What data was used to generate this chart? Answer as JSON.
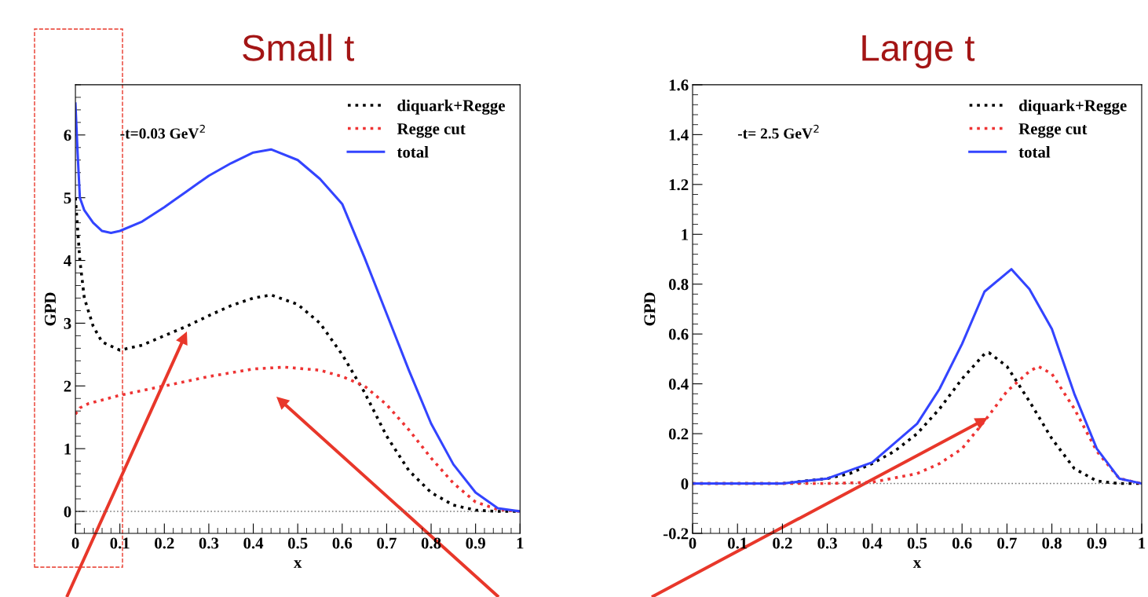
{
  "chart_data": [
    {
      "type": "line",
      "title": "Small t",
      "xlabel": "x",
      "ylabel": "GPD",
      "annotations": [
        "-t=0.03 GeV$^{2}$"
      ],
      "legend": "top right",
      "xlim": [
        0,
        1
      ],
      "ylim": [
        -0.35,
        6.8
      ],
      "xticks": [
        0,
        0.1,
        0.2,
        0.3,
        0.4,
        0.5,
        0.6,
        0.7,
        0.8,
        0.9,
        1
      ],
      "yticks": [
        0,
        1,
        2,
        3,
        4,
        5,
        6
      ],
      "ref_lines": [
        {
          "axis": "y",
          "value": 0,
          "color": "#777777",
          "line_style": "dotted"
        }
      ],
      "series": [
        {
          "name": "diquark+Regge",
          "color": "#000000",
          "line_style": "dotted",
          "x": [
            0,
            0.005,
            0.01,
            0.02,
            0.04,
            0.06,
            0.1,
            0.15,
            0.2,
            0.25,
            0.3,
            0.35,
            0.4,
            0.44,
            0.5,
            0.55,
            0.6,
            0.65,
            0.7,
            0.75,
            0.8,
            0.85,
            0.9,
            0.95,
            1
          ],
          "values": [
            5.0,
            4.5,
            4.0,
            3.4,
            2.95,
            2.7,
            2.57,
            2.65,
            2.8,
            2.95,
            3.12,
            3.28,
            3.4,
            3.45,
            3.3,
            3.0,
            2.5,
            1.9,
            1.2,
            0.65,
            0.3,
            0.1,
            0.02,
            0,
            0
          ]
        },
        {
          "name": "Regge cut",
          "color": "#ee3333",
          "line_style": "dotted",
          "x": [
            0,
            0.01,
            0.03,
            0.1,
            0.2,
            0.3,
            0.4,
            0.47,
            0.55,
            0.6,
            0.65,
            0.7,
            0.75,
            0.8,
            0.85,
            0.9,
            0.95,
            1
          ],
          "values": [
            1.55,
            1.65,
            1.72,
            1.85,
            2.0,
            2.15,
            2.27,
            2.3,
            2.25,
            2.15,
            2.0,
            1.7,
            1.3,
            0.85,
            0.45,
            0.15,
            0.03,
            0
          ]
        },
        {
          "name": "total",
          "color": "#3344ff",
          "line_style": "solid",
          "x": [
            0,
            0.005,
            0.01,
            0.02,
            0.04,
            0.06,
            0.08,
            0.1,
            0.15,
            0.2,
            0.25,
            0.3,
            0.35,
            0.4,
            0.44,
            0.5,
            0.55,
            0.6,
            0.65,
            0.7,
            0.75,
            0.8,
            0.85,
            0.9,
            0.95,
            1
          ],
          "values": [
            6.5,
            5.7,
            5.0,
            4.8,
            4.6,
            4.47,
            4.44,
            4.47,
            4.62,
            4.85,
            5.1,
            5.35,
            5.55,
            5.72,
            5.77,
            5.6,
            5.3,
            4.9,
            4.05,
            3.15,
            2.25,
            1.4,
            0.75,
            0.3,
            0.05,
            0
          ]
        }
      ]
    },
    {
      "type": "line",
      "title": "Large t",
      "xlabel": "x",
      "ylabel": "GPD",
      "annotations": [
        "-t= 2.5 GeV$^{2}$"
      ],
      "legend": "top right",
      "xlim": [
        0,
        1
      ],
      "ylim": [
        -0.2,
        1.6
      ],
      "xticks": [
        0,
        0.1,
        0.2,
        0.3,
        0.4,
        0.5,
        0.6,
        0.7,
        0.8,
        0.9,
        1
      ],
      "yticks": [
        -0.2,
        0,
        0.2,
        0.4,
        0.6,
        0.8,
        1,
        1.2,
        1.4,
        1.6
      ],
      "ref_lines": [
        {
          "axis": "y",
          "value": 0,
          "color": "#777777",
          "line_style": "dotted"
        }
      ],
      "series": [
        {
          "name": "diquark+Regge",
          "color": "#000000",
          "line_style": "dotted",
          "x": [
            0,
            0.1,
            0.2,
            0.3,
            0.35,
            0.4,
            0.45,
            0.5,
            0.55,
            0.6,
            0.65,
            0.66,
            0.7,
            0.75,
            0.8,
            0.85,
            0.9,
            0.95,
            1
          ],
          "values": [
            0,
            0,
            0,
            0.02,
            0.04,
            0.08,
            0.13,
            0.2,
            0.3,
            0.42,
            0.52,
            0.525,
            0.47,
            0.33,
            0.18,
            0.06,
            0.01,
            0,
            0
          ]
        },
        {
          "name": "Regge cut",
          "color": "#ee3333",
          "line_style": "dotted",
          "x": [
            0,
            0.1,
            0.2,
            0.3,
            0.4,
            0.5,
            0.55,
            0.6,
            0.65,
            0.7,
            0.75,
            0.77,
            0.8,
            0.85,
            0.9,
            0.95,
            1
          ],
          "values": [
            0,
            0,
            0,
            0,
            0.005,
            0.04,
            0.08,
            0.14,
            0.25,
            0.37,
            0.45,
            0.47,
            0.44,
            0.3,
            0.13,
            0.02,
            0
          ]
        },
        {
          "name": "total",
          "color": "#3344ff",
          "line_style": "solid",
          "x": [
            0,
            0.1,
            0.2,
            0.3,
            0.4,
            0.5,
            0.55,
            0.6,
            0.65,
            0.71,
            0.75,
            0.8,
            0.85,
            0.9,
            0.95,
            1
          ],
          "values": [
            0,
            0,
            0,
            0.02,
            0.085,
            0.24,
            0.38,
            0.56,
            0.77,
            0.86,
            0.78,
            0.62,
            0.36,
            0.14,
            0.02,
            0
          ]
        }
      ]
    }
  ]
}
